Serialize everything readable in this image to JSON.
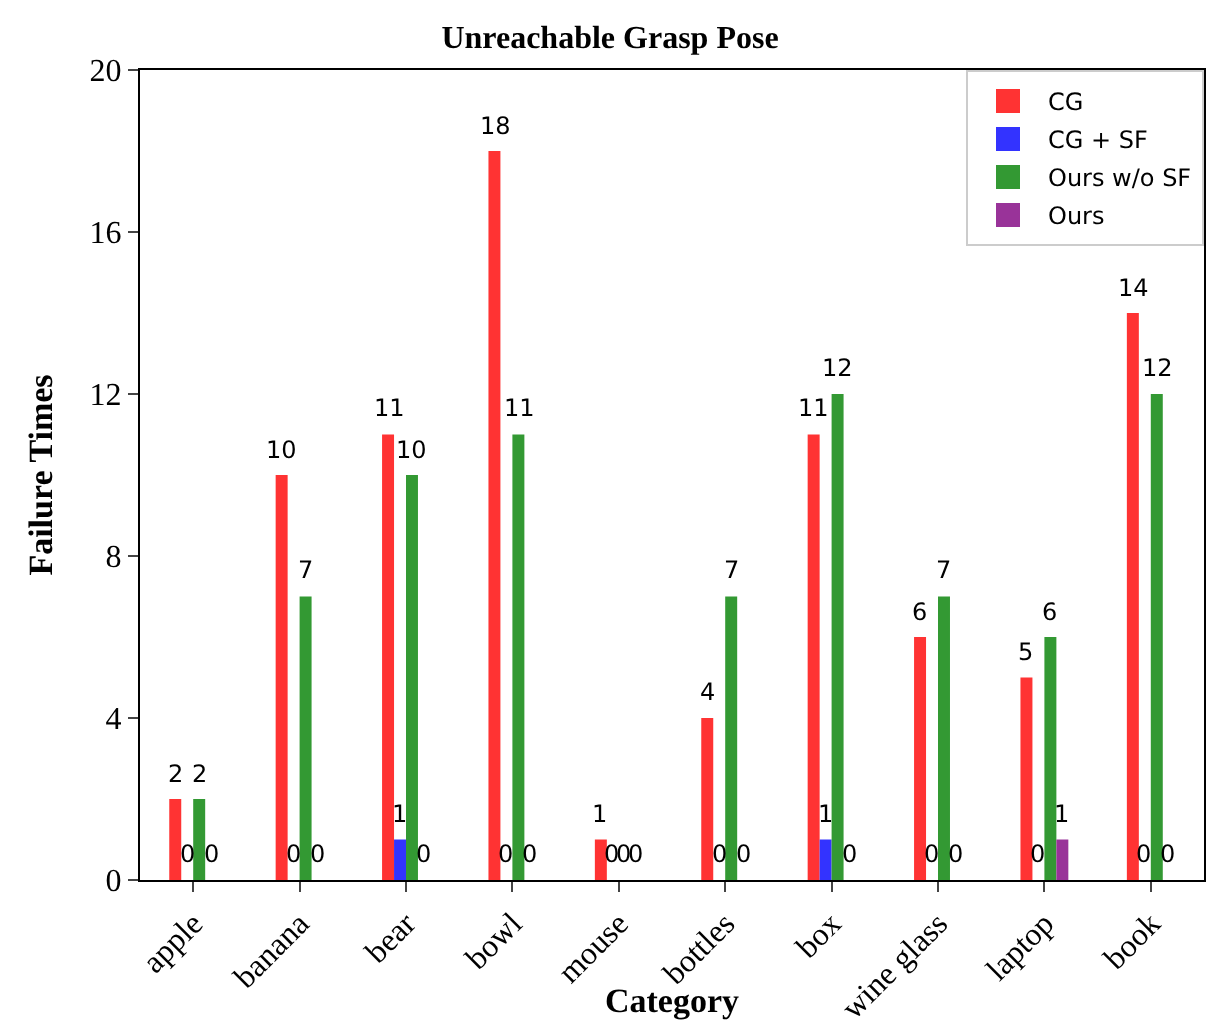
{
  "chart_data": {
    "type": "bar",
    "title": "Unreachable Grasp Pose",
    "xlabel": "Category",
    "ylabel": "Failure Times",
    "categories": [
      "apple",
      "banana",
      "bear",
      "bowl",
      "mouse",
      "bottles",
      "box",
      "wine glass",
      "laptop",
      "book"
    ],
    "series": [
      {
        "name": "CG",
        "color": "#ff3333",
        "values": [
          2,
          10,
          11,
          18,
          1,
          4,
          11,
          6,
          5,
          14
        ]
      },
      {
        "name": "CG + SF",
        "color": "#3333ff",
        "values": [
          0,
          0,
          1,
          0,
          0,
          0,
          1,
          0,
          0,
          0
        ]
      },
      {
        "name": "Ours w/o SF",
        "color": "#339933",
        "values": [
          2,
          7,
          10,
          11,
          0,
          7,
          12,
          7,
          6,
          12
        ]
      },
      {
        "name": "Ours",
        "color": "#993399",
        "values": [
          0,
          0,
          0,
          0,
          0,
          0,
          0,
          0,
          1,
          0
        ]
      }
    ],
    "ylim": [
      0,
      20
    ],
    "yticks": [
      0,
      4,
      8,
      12,
      16,
      20
    ],
    "data_labels": true,
    "grid": false,
    "legend": "top right"
  }
}
